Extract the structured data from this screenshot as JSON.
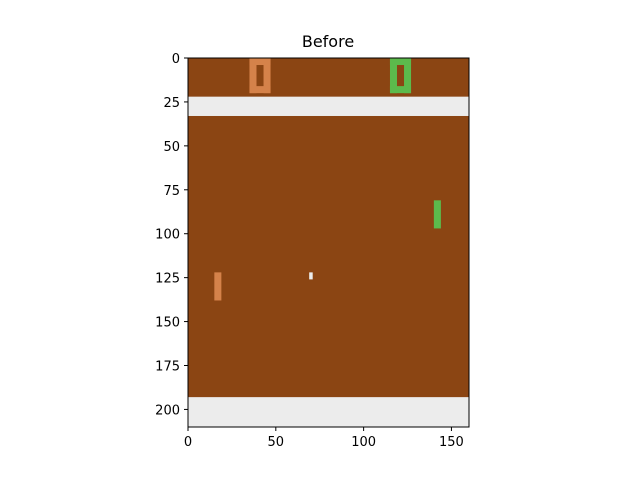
{
  "title": "Before",
  "frame": {
    "width": 160,
    "height": 210,
    "xticks": [
      0,
      50,
      100,
      150
    ],
    "yticks": [
      0,
      25,
      50,
      75,
      100,
      125,
      150,
      175,
      200
    ]
  },
  "colors": {
    "court": "#8b4513",
    "wall": "#ececec",
    "player_orange": "#d5824a",
    "player_green": "#5cba4c",
    "ball": "#ececec",
    "axis": "#000000"
  },
  "walls": [
    {
      "y0": 22,
      "y1": 33
    },
    {
      "y0": 193,
      "y1": 210
    }
  ],
  "score_digits": [
    {
      "player": "orange",
      "value": "0",
      "x0": 35,
      "y0": 0,
      "x1": 47,
      "y1": 20
    },
    {
      "player": "green",
      "value": "0",
      "x0": 115,
      "y0": 0,
      "x1": 127,
      "y1": 20
    }
  ],
  "paddles": [
    {
      "player": "orange",
      "x0": 15,
      "y0": 122,
      "x1": 19,
      "y1": 138
    },
    {
      "player": "green",
      "x0": 140,
      "y0": 81,
      "x1": 144,
      "y1": 97
    }
  ],
  "ball": {
    "x0": 69,
    "y0": 122,
    "x1": 71,
    "y1": 126
  }
}
